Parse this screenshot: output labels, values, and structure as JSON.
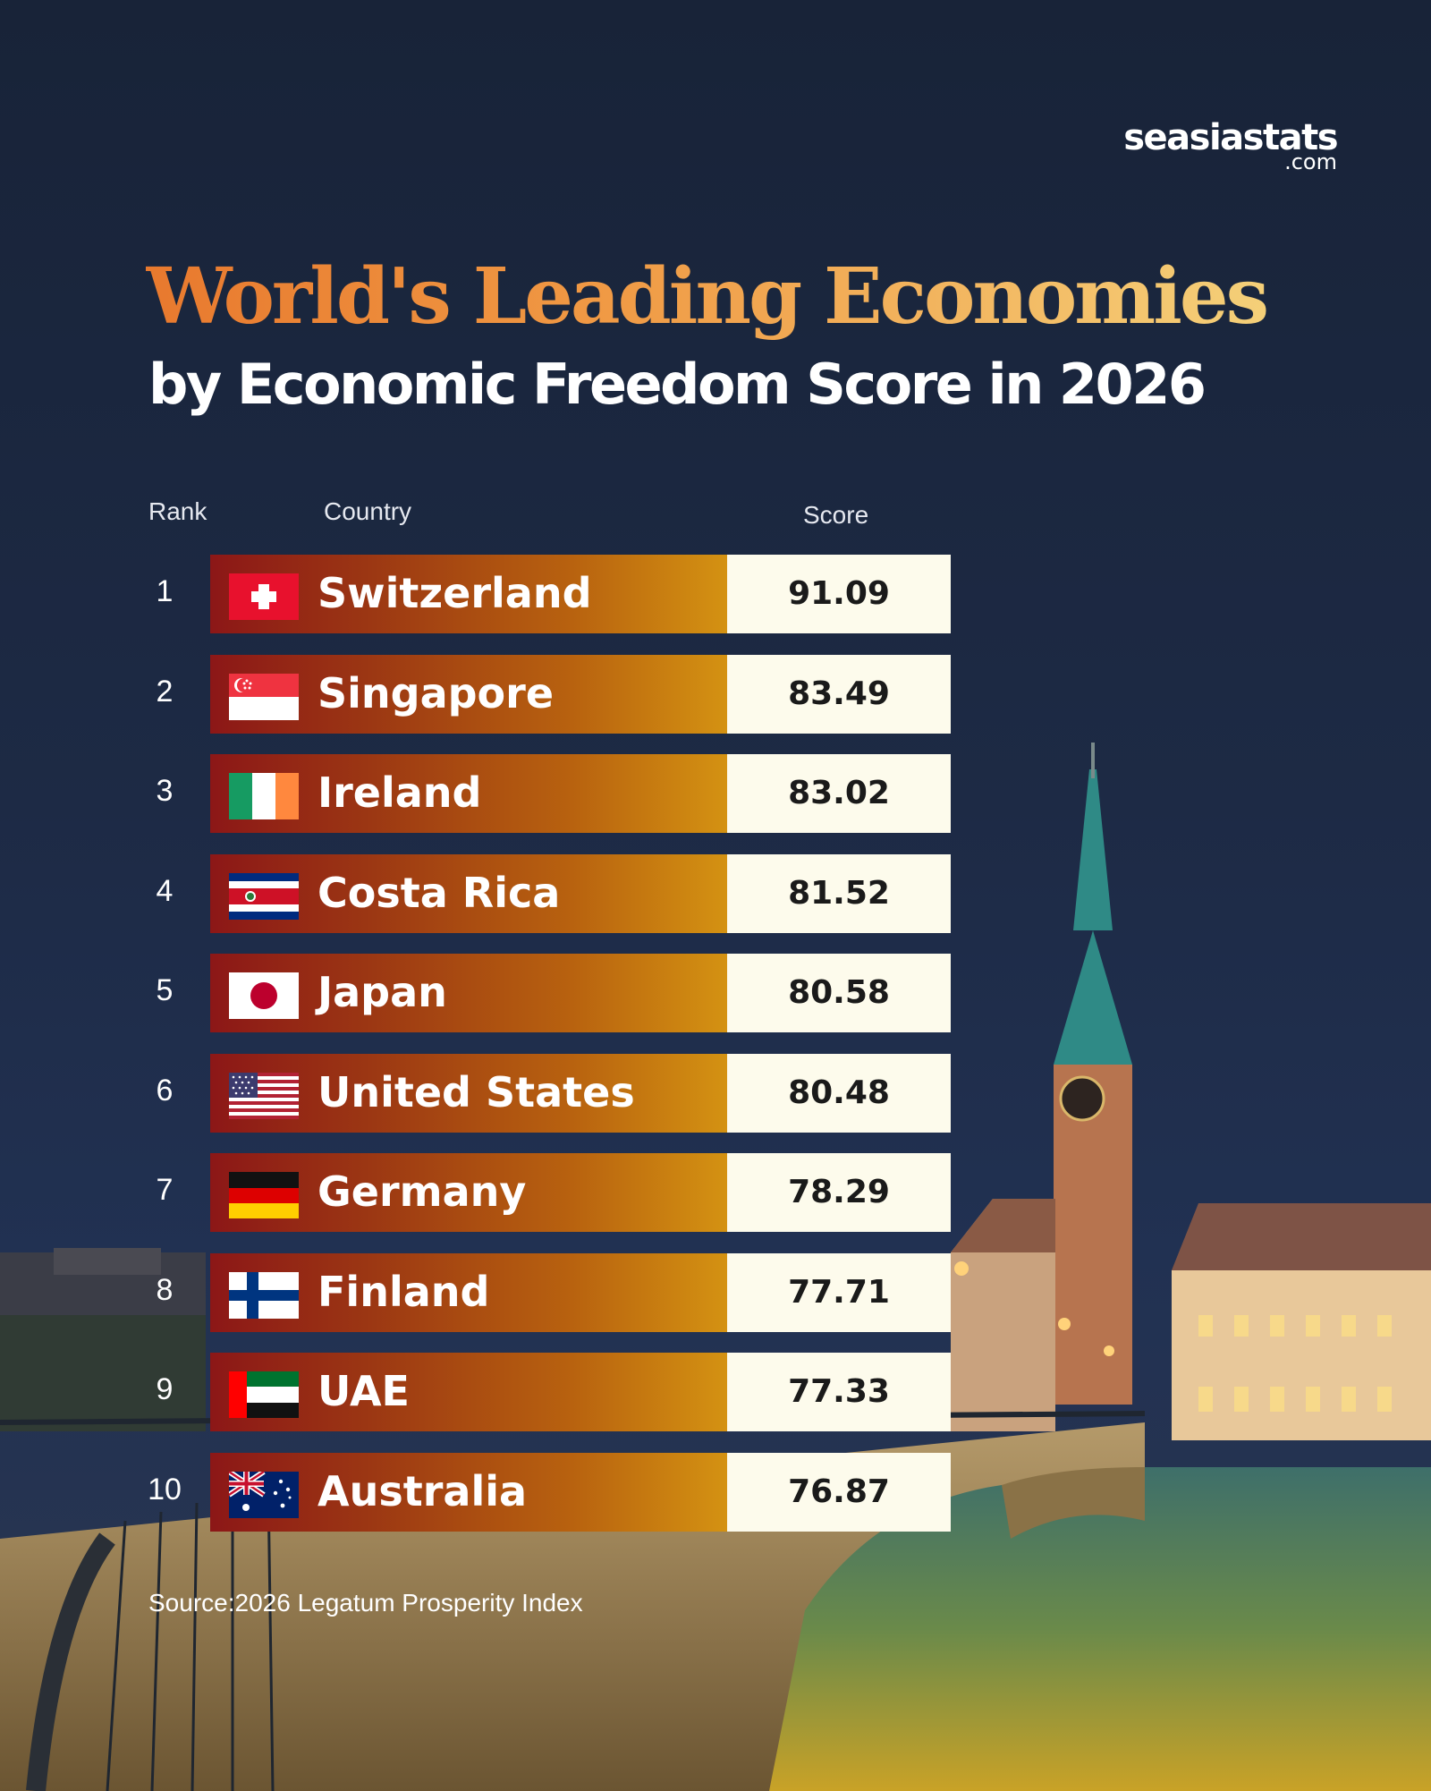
{
  "brand": {
    "name": "seasiastats",
    "suffix": ".com"
  },
  "colors": {
    "title_gradient_start": "#e8792e",
    "title_gradient_end": "#f5d37c",
    "bar_gradient_start": "#8c1717",
    "bar_gradient_end": "#d49212",
    "score_box": "#fdfbec",
    "background": "#1d2a45"
  },
  "chart_data": {
    "type": "bar",
    "title": "World's Leading Economies",
    "subtitle": "by Economic Freedom Score in 2026",
    "columns": {
      "rank": "Rank",
      "country": "Country",
      "score": "Score"
    },
    "categories": [
      "Switzerland",
      "Singapore",
      "Ireland",
      "Costa Rica",
      "Japan",
      "United States",
      "Germany",
      "Finland",
      "UAE",
      "Australia"
    ],
    "rows": [
      {
        "rank": "1",
        "country": "Switzerland",
        "flag": "switzerland-flag-icon",
        "score": "91.09"
      },
      {
        "rank": "2",
        "country": "Singapore",
        "flag": "singapore-flag-icon",
        "score": "83.49"
      },
      {
        "rank": "3",
        "country": "Ireland",
        "flag": "ireland-flag-icon",
        "score": "83.02"
      },
      {
        "rank": "4",
        "country": "Costa Rica",
        "flag": "costa-rica-flag-icon",
        "score": "81.52"
      },
      {
        "rank": "5",
        "country": "Japan",
        "flag": "japan-flag-icon",
        "score": "80.58"
      },
      {
        "rank": "6",
        "country": "United States",
        "flag": "united-states-flag-icon",
        "score": "80.48"
      },
      {
        "rank": "7",
        "country": "Germany",
        "flag": "germany-flag-icon",
        "score": "78.29"
      },
      {
        "rank": "8",
        "country": "Finland",
        "flag": "finland-flag-icon",
        "score": "77.71"
      },
      {
        "rank": "9",
        "country": "UAE",
        "flag": "uae-flag-icon",
        "score": "77.33"
      },
      {
        "rank": "10",
        "country": "Australia",
        "flag": "australia-flag-icon",
        "score": "76.87"
      }
    ],
    "values": [
      91.09,
      83.49,
      83.02,
      81.52,
      80.58,
      80.48,
      78.29,
      77.71,
      77.33,
      76.87
    ],
    "source": "Source:2026 Legatum Prosperity Index"
  }
}
